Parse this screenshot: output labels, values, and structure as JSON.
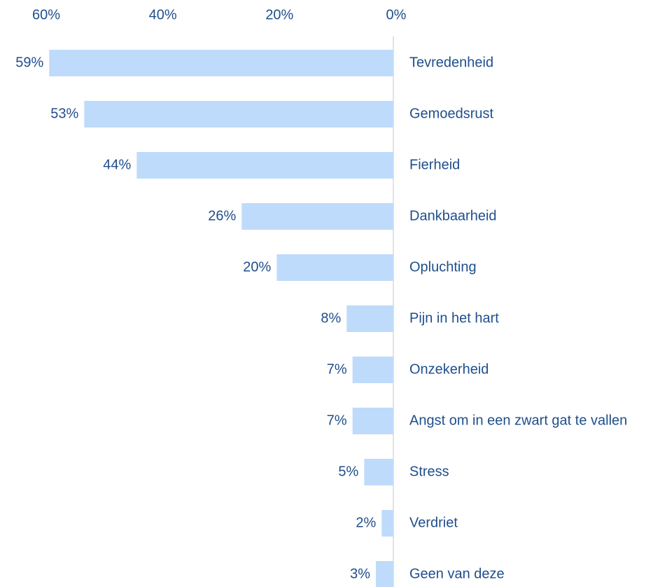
{
  "chart_data": {
    "type": "bar",
    "orientation": "horizontal",
    "x_reversed": true,
    "categories": [
      "Tevredenheid",
      "Gemoedsrust",
      "Fierheid",
      "Dankbaarheid",
      "Opluchting",
      "Pijn in het hart",
      "Onzekerheid",
      "Angst om in een zwart gat te vallen",
      "Stress",
      "Verdriet",
      "Geen van deze"
    ],
    "values": [
      59,
      53,
      44,
      26,
      20,
      8,
      7,
      7,
      5,
      2,
      3
    ],
    "value_labels": [
      "59%",
      "53%",
      "44%",
      "26%",
      "20%",
      "8%",
      "7%",
      "7%",
      "5%",
      "2%",
      "3%"
    ],
    "color": "#bfdbfb",
    "xlim": [
      0,
      60
    ],
    "xticks": [
      {
        "value": 60,
        "label": "60%"
      },
      {
        "value": 40,
        "label": "40%"
      },
      {
        "value": 20,
        "label": "20%"
      },
      {
        "value": 0,
        "label": "0%"
      }
    ]
  }
}
